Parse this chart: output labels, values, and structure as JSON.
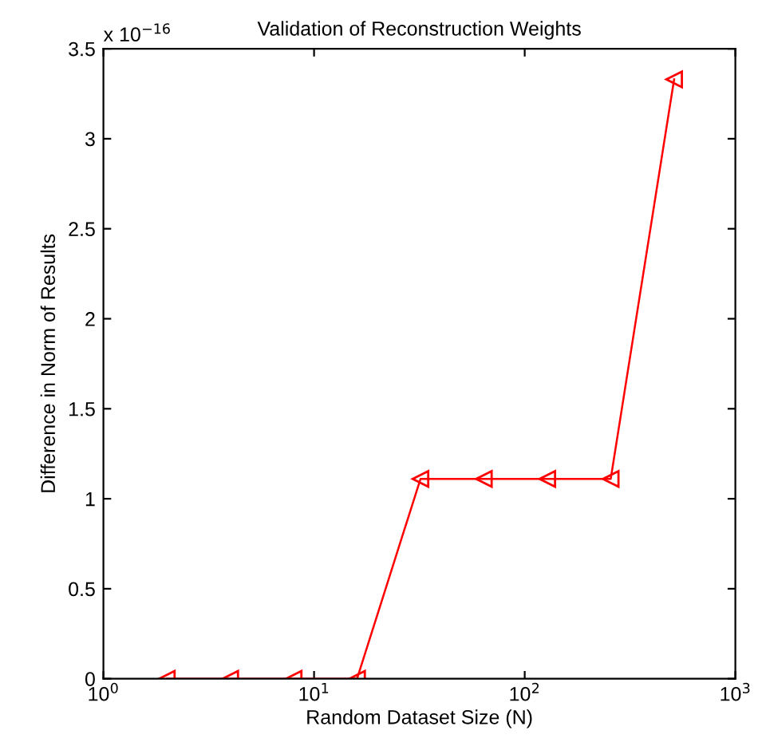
{
  "chart_data": {
    "type": "line",
    "title": "Validation of Reconstruction Weights",
    "xlabel": "Random Dataset Size (N)",
    "ylabel": "Difference in Norm of Results",
    "x": [
      2,
      4,
      8,
      16,
      32,
      64,
      128,
      256,
      512
    ],
    "series": [
      {
        "color": "#ff0000",
        "values": [
          0,
          0,
          0,
          0,
          1.11,
          1.11,
          1.11,
          1.11,
          3.33
        ]
      }
    ],
    "log": "x",
    "xlim": [
      1,
      1000
    ],
    "xticks": [
      {
        "value": 1,
        "label": "10$^{0}$"
      },
      {
        "value": 10,
        "label": "10$^{1}$"
      },
      {
        "value": 100,
        "label": "10$^{2}$"
      },
      {
        "value": 1000,
        "label": "10$^{3}$"
      }
    ],
    "ylim": [
      0,
      3.5
    ],
    "yticks": [
      0,
      0.5,
      1,
      1.5,
      2,
      2.5,
      3,
      3.5
    ],
    "annotations": [
      "x 10$^{−16}$"
    ],
    "marker": "triangle",
    "line_style": "solid",
    "grid": false,
    "legend": false
  }
}
